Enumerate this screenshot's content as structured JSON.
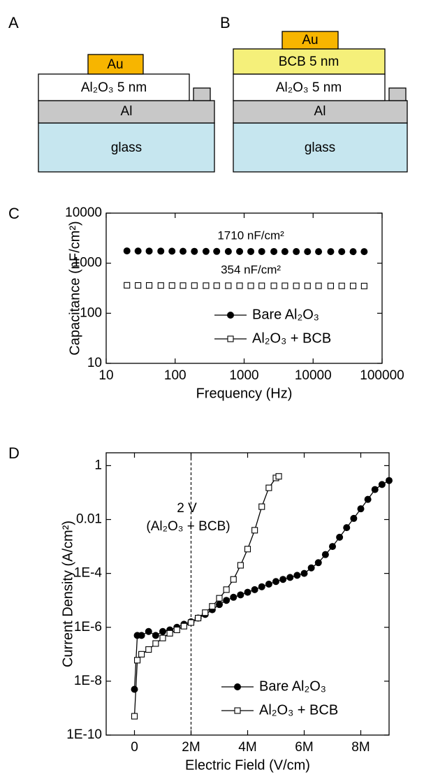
{
  "diagrams": [
    {
      "label": "A",
      "layers": [
        "Au",
        "Al₂O₃ 5 nm",
        "Al",
        "glass"
      ]
    },
    {
      "label": "B",
      "layers": [
        "Au",
        "BCB 5 nm",
        "Al₂O₃ 5 nm",
        "Al",
        "glass"
      ]
    }
  ],
  "chart_data": [
    {
      "panel": "C",
      "type": "scatter",
      "xlabel": "Frequency (Hz)",
      "ylabel": "Capacitance (nF/cm²)",
      "xscale": "log",
      "yscale": "log",
      "xlim": [
        10,
        100000
      ],
      "ylim": [
        10,
        10000
      ],
      "xticks": [
        10,
        100,
        1000,
        10000,
        100000
      ],
      "yticks": [
        10,
        100,
        1000,
        10000
      ],
      "legend": "lower right",
      "annotations": [
        "1710 nF/cm²",
        "354 nF/cm²"
      ],
      "x": [
        20,
        29,
        42,
        62,
        90,
        130,
        190,
        280,
        400,
        590,
        860,
        1250,
        1800,
        2700,
        3900,
        5700,
        8300,
        12000,
        18000,
        26000,
        38000,
        55000
      ],
      "series": [
        {
          "name": "Bare Al₂O₃",
          "color": "#000000",
          "marker": "filled-circle",
          "values": [
            1760,
            1750,
            1745,
            1740,
            1735,
            1730,
            1725,
            1720,
            1720,
            1715,
            1715,
            1710,
            1710,
            1710,
            1705,
            1705,
            1700,
            1700,
            1700,
            1700,
            1700,
            1700
          ]
        },
        {
          "name": "Al₂O₃ + BCB",
          "color": "#000000",
          "marker": "open-square",
          "values": [
            362,
            360,
            360,
            358,
            358,
            357,
            357,
            356,
            356,
            355,
            355,
            354,
            354,
            354,
            354,
            353,
            353,
            353,
            352,
            352,
            352,
            350
          ]
        }
      ]
    },
    {
      "panel": "D",
      "type": "line",
      "xlabel": "Electric Field (V/cm)",
      "ylabel": "Current Density (A/cm²)",
      "xscale": "linear",
      "yscale": "log",
      "xlim": [
        -1000000,
        9000000
      ],
      "ylim": [
        1e-10,
        3
      ],
      "xticks": [
        0,
        {
          "value": 2000000,
          "label": "2M"
        },
        {
          "value": 4000000,
          "label": "4M"
        },
        {
          "value": 6000000,
          "label": "6M"
        },
        {
          "value": 8000000,
          "label": "8M"
        }
      ],
      "yticks": [
        {
          "value": 1e-10,
          "label": "1E-10"
        },
        {
          "value": 1e-08,
          "label": "1E-8"
        },
        {
          "value": 1e-06,
          "label": "1E-6"
        },
        {
          "value": 0.0001,
          "label": "1E-4"
        },
        0.01,
        1
      ],
      "legend": "lower right",
      "vline": 2000000,
      "annotations": [
        "2 V",
        "(Al₂O₃ + BCB)"
      ],
      "series": [
        {
          "name": "Bare Al₂O₃",
          "color": "#000000",
          "marker": "filled-circle",
          "x": [
            0,
            100000,
            250000,
            500000,
            750000,
            1000000,
            1250000,
            1500000,
            1750000,
            2000000,
            2250000,
            2500000,
            2750000,
            3000000,
            3250000,
            3500000,
            3750000,
            4000000,
            4250000,
            4500000,
            4750000,
            5000000,
            5250000,
            5500000,
            5750000,
            6000000,
            6250000,
            6500000,
            6750000,
            7000000,
            7250000,
            7500000,
            7750000,
            8000000,
            8250000,
            8500000,
            8750000,
            9000000
          ],
          "values": [
            5e-09,
            5e-07,
            5e-07,
            7e-07,
            5e-07,
            7e-07,
            8e-07,
            1e-06,
            1.3e-06,
            1.6e-06,
            2.2e-06,
            3e-06,
            4.5e-06,
            7e-06,
            1e-05,
            1.3e-05,
            1.6e-05,
            2e-05,
            2.5e-05,
            3.2e-05,
            4e-05,
            5e-05,
            6e-05,
            7.1e-05,
            8.5e-05,
            0.0001,
            0.00016,
            0.00025,
            0.0005,
            0.001,
            0.0022,
            0.005,
            0.011,
            0.025,
            0.056,
            0.13,
            0.2,
            0.28
          ]
        },
        {
          "name": "Al₂O₃ + BCB",
          "color": "#000000",
          "marker": "open-square",
          "x": [
            0,
            100000,
            250000,
            500000,
            750000,
            1000000,
            1250000,
            1500000,
            1750000,
            2000000,
            2250000,
            2500000,
            2750000,
            3000000,
            3250000,
            3500000,
            3750000,
            4000000,
            4250000,
            4500000,
            4750000,
            5000000,
            5100000
          ],
          "values": [
            5e-10,
            6e-08,
            1e-07,
            1.5e-07,
            2.5e-07,
            4e-07,
            6e-07,
            8e-07,
            1.1e-06,
            1.5e-06,
            2.2e-06,
            3.5e-06,
            6e-06,
            1.2e-05,
            2.5e-05,
            6e-05,
            0.0002,
            0.0008,
            0.004,
            0.03,
            0.15,
            0.35,
            0.4
          ]
        }
      ]
    }
  ]
}
